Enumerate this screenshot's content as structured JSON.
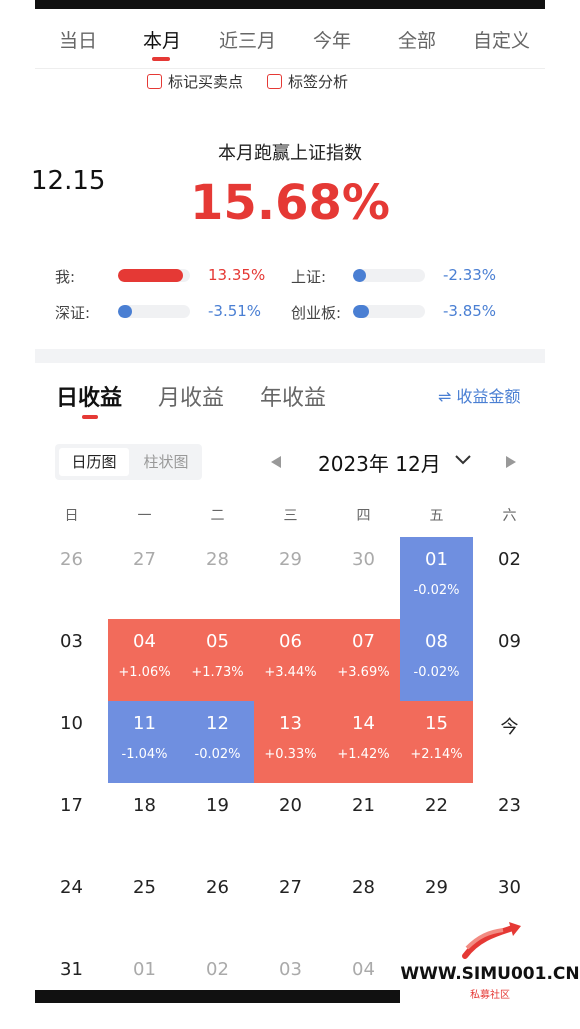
{
  "period_tabs": [
    "当日",
    "本月",
    "近三月",
    "今年",
    "全部",
    "自定义"
  ],
  "active_period_tab": 1,
  "checkboxes": [
    "标记买卖点",
    "标签分析"
  ],
  "date_label": "12.15",
  "headline": "本月跑赢上证指数",
  "big_percent": "15.68%",
  "stats": [
    {
      "label": "我:",
      "value": "13.35%",
      "fill": 0.9,
      "color": "#e53935"
    },
    {
      "label": "上证:",
      "value": "-2.33%",
      "fill": 0.12,
      "color": "#4a7fd3"
    },
    {
      "label": "深证:",
      "value": "-3.51%",
      "fill": 0.2,
      "color": "#4a7fd3"
    },
    {
      "label": "创业板:",
      "value": "-3.85%",
      "fill": 0.22,
      "color": "#4a7fd3"
    }
  ],
  "profit_tabs": [
    "日收益",
    "月收益",
    "年收益"
  ],
  "active_profit_tab": 0,
  "amount_toggle": "⇌ 收益金额",
  "view_toggle": {
    "calendar": "日历图",
    "bar": "柱状图"
  },
  "month_title": "2023年 12月",
  "nav_icons": {
    "prev": "triangle-left",
    "next": "triangle-right",
    "dropdown": "chevron-down"
  },
  "weekdays": [
    "日",
    "一",
    "二",
    "三",
    "四",
    "五",
    "六"
  ],
  "colors": {
    "gain": "#f26b5b",
    "loss": "#6f8fe0",
    "accent": "#e53935"
  },
  "calendar": [
    [
      {
        "d": "26",
        "o": 1
      },
      {
        "d": "27",
        "o": 1
      },
      {
        "d": "28",
        "o": 1
      },
      {
        "d": "29",
        "o": 1
      },
      {
        "d": "30",
        "o": 1
      },
      {
        "d": "01",
        "p": "-0.02%",
        "t": "loss"
      },
      {
        "d": "02"
      }
    ],
    [
      {
        "d": "03"
      },
      {
        "d": "04",
        "p": "+1.06%",
        "t": "gain"
      },
      {
        "d": "05",
        "p": "+1.73%",
        "t": "gain"
      },
      {
        "d": "06",
        "p": "+3.44%",
        "t": "gain"
      },
      {
        "d": "07",
        "p": "+3.69%",
        "t": "gain"
      },
      {
        "d": "08",
        "p": "-0.02%",
        "t": "loss"
      },
      {
        "d": "09"
      }
    ],
    [
      {
        "d": "10"
      },
      {
        "d": "11",
        "p": "-1.04%",
        "t": "loss"
      },
      {
        "d": "12",
        "p": "-0.02%",
        "t": "loss"
      },
      {
        "d": "13",
        "p": "+0.33%",
        "t": "gain"
      },
      {
        "d": "14",
        "p": "+1.42%",
        "t": "gain"
      },
      {
        "d": "15",
        "p": "+2.14%",
        "t": "gain"
      },
      {
        "d": "今"
      }
    ],
    [
      {
        "d": "17"
      },
      {
        "d": "18"
      },
      {
        "d": "19"
      },
      {
        "d": "20"
      },
      {
        "d": "21"
      },
      {
        "d": "22"
      },
      {
        "d": "23"
      }
    ],
    [
      {
        "d": "24"
      },
      {
        "d": "25"
      },
      {
        "d": "26"
      },
      {
        "d": "27"
      },
      {
        "d": "28"
      },
      {
        "d": "29"
      },
      {
        "d": "30"
      }
    ],
    [
      {
        "d": "31"
      },
      {
        "d": "01",
        "o": 1
      },
      {
        "d": "02",
        "o": 1
      },
      {
        "d": "03",
        "o": 1
      },
      {
        "d": "04",
        "o": 1
      }
    ]
  ],
  "watermark": {
    "text": "WWW.SIMU001.CN",
    "sub": "私募社区"
  }
}
